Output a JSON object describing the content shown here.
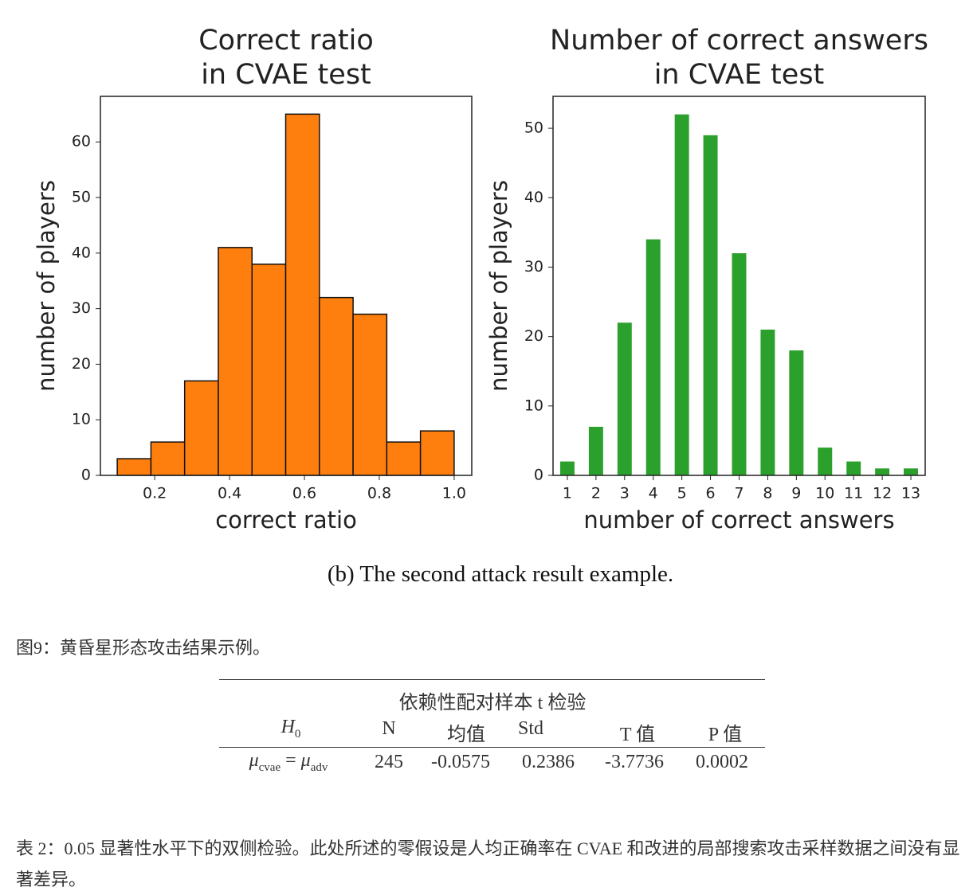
{
  "chart_data": [
    {
      "type": "histogram",
      "title": [
        "Correct ratio",
        "in CVAE test"
      ],
      "xlabel": "correct ratio",
      "ylabel": "number of players",
      "bins": [
        0.1,
        0.19,
        0.28,
        0.37,
        0.46,
        0.55,
        0.64,
        0.73,
        0.82,
        0.91,
        1.0
      ],
      "values": [
        3,
        6,
        17,
        41,
        38,
        65,
        32,
        29,
        6,
        8
      ],
      "color": "#ff7f0e",
      "xlim": [
        0.055,
        1.047
      ],
      "ylim": [
        0,
        68.2
      ],
      "xticks": [
        0.2,
        0.4,
        0.6,
        0.8,
        {
          "value": 1.0,
          "label": "1.0"
        }
      ],
      "yticks": [
        0,
        10,
        20,
        30,
        40,
        50,
        60
      ],
      "grid": false
    },
    {
      "type": "bar",
      "title": [
        "Number of correct answers",
        "in CVAE test"
      ],
      "xlabel": "number of correct answers",
      "ylabel": "number of players",
      "categories": [
        "1",
        "2",
        "3",
        "4",
        "5",
        "6",
        "7",
        "8",
        "9",
        "10",
        "11",
        "12",
        "13"
      ],
      "values": [
        2,
        7,
        22,
        34,
        52,
        49,
        32,
        21,
        18,
        4,
        2,
        1,
        1
      ],
      "color": "#2ca02c",
      "ylim": [
        0,
        54.6
      ],
      "yticks": [
        0,
        10,
        20,
        30,
        40,
        50
      ],
      "grid": false
    }
  ],
  "subcaption": "(b) The second attack result example.",
  "figure_caption": "图9：黄昏星形态攻击结果示例。",
  "table": {
    "title": "依赖性配对样本 t 检验",
    "header": [
      {
        "symbol": "H",
        "sub": "0"
      },
      "N",
      "均值",
      "Std",
      "T 值",
      "P 值"
    ],
    "row": [
      {
        "left": "μ",
        "left_sub": "cvae",
        "op": "=",
        "right": "μ",
        "right_sub": "adv"
      },
      "245",
      "-0.0575",
      "0.2386",
      "-3.7736",
      "0.0002"
    ]
  },
  "table_caption": "表 2：0.05 显著性水平下的双侧检验。此处所述的零假设是人均正确率在 CVAE 和改进的局部搜索攻击采样数据之间没有显著差异。"
}
